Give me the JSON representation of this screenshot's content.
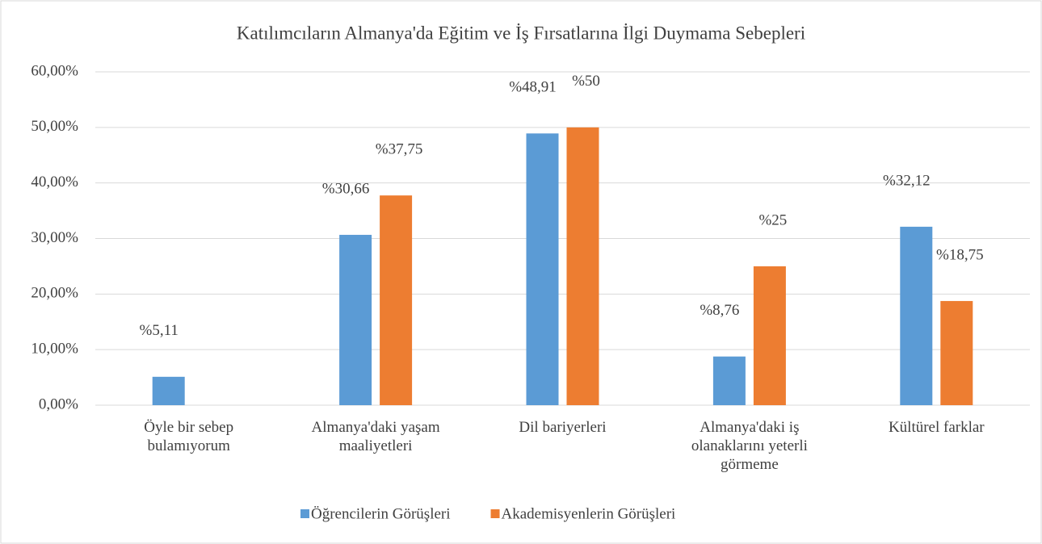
{
  "chart_data": {
    "type": "bar",
    "title": "Katılımcıların Almanya'da Eğitim ve İş Fırsatlarına İlgi Duymama Sebepleri",
    "categories": [
      "Öyle bir sebep bulamıyorum",
      "Almanya'daki yaşam maaliyetleri",
      "Dil bariyerleri",
      "Almanya'daki iş olanaklarını yeterli görmeme",
      "Kültürel farklar"
    ],
    "series": [
      {
        "name": "Öğrencilerin Görüşleri",
        "color": "#5b9bd5",
        "values": [
          5.11,
          30.66,
          48.91,
          8.76,
          32.12
        ],
        "value_labels": [
          "%5,11",
          "%30,66",
          "%48,91",
          "%8,76",
          "%32,12"
        ]
      },
      {
        "name": "Akademisyenlerin Görüşleri",
        "color": "#ed7d31",
        "values": [
          null,
          37.75,
          50,
          25,
          18.75
        ],
        "value_labels": [
          null,
          "%37,75",
          "%50",
          "%25",
          "%18,75"
        ]
      }
    ],
    "ylim": [
      0,
      60
    ],
    "yticks": [
      {
        "value": 0,
        "label": "0,00%"
      },
      {
        "value": 10,
        "label": "10,00%"
      },
      {
        "value": 20,
        "label": "20,00%"
      },
      {
        "value": 30,
        "label": "30,00%"
      },
      {
        "value": 40,
        "label": "40,00%"
      },
      {
        "value": 50,
        "label": "50,00%"
      },
      {
        "value": 60,
        "label": "60,00%"
      }
    ],
    "grid": true,
    "legend": "bottom"
  }
}
